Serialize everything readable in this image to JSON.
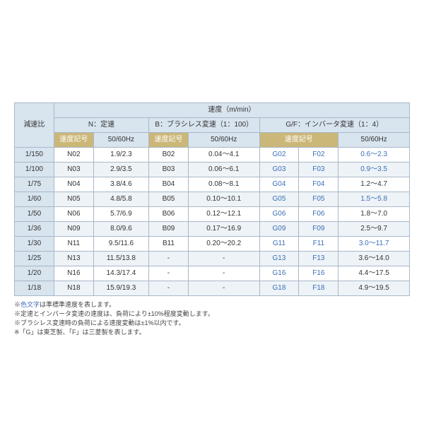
{
  "table": {
    "corner": "減速比",
    "top": "速度（m/min）",
    "groups": {
      "n": "N：定速",
      "b": "B：ブラシレス変速（1：100）",
      "gf": "G/F：インバータ変速（1：4）"
    },
    "sub": {
      "code": "速度記号",
      "hz": "50/60Hz"
    },
    "rows": [
      {
        "ratio": "1/150",
        "n_code": "N02",
        "n_hz": "1.9/2.3",
        "b_code": "B02",
        "b_hz": "0.04～4.1",
        "g": "G02",
        "f": "F02",
        "gf_hz": "0.6～2.3",
        "blue": true
      },
      {
        "ratio": "1/100",
        "n_code": "N03",
        "n_hz": "2.9/3.5",
        "b_code": "B03",
        "b_hz": "0.06～6.1",
        "g": "G03",
        "f": "F03",
        "gf_hz": "0.9～3.5",
        "blue": true
      },
      {
        "ratio": "1/75",
        "n_code": "N04",
        "n_hz": "3.8/4.6",
        "b_code": "B04",
        "b_hz": "0.08～8.1",
        "g": "G04",
        "f": "F04",
        "gf_hz": "1.2～4.7"
      },
      {
        "ratio": "1/60",
        "n_code": "N05",
        "n_hz": "4.8/5.8",
        "b_code": "B05",
        "b_hz": "0.10～10.1",
        "g": "G05",
        "f": "F05",
        "gf_hz": "1.5～5.8",
        "blue": true
      },
      {
        "ratio": "1/50",
        "n_code": "N06",
        "n_hz": "5.7/6.9",
        "b_code": "B06",
        "b_hz": "0.12～12.1",
        "g": "G06",
        "f": "F06",
        "gf_hz": "1.8～7.0"
      },
      {
        "ratio": "1/36",
        "n_code": "N09",
        "n_hz": "8.0/9.6",
        "b_code": "B09",
        "b_hz": "0.17～16.9",
        "g": "G09",
        "f": "F09",
        "gf_hz": "2.5～9.7"
      },
      {
        "ratio": "1/30",
        "n_code": "N11",
        "n_hz": "9.5/11.6",
        "b_code": "B11",
        "b_hz": "0.20～20.2",
        "g": "G11",
        "f": "F11",
        "gf_hz": "3.0～11.7",
        "blue": true
      },
      {
        "ratio": "1/25",
        "n_code": "N13",
        "n_hz": "11.5/13.8",
        "b_code": "-",
        "b_hz": "-",
        "g": "G13",
        "f": "F13",
        "gf_hz": "3.6～14.0"
      },
      {
        "ratio": "1/20",
        "n_code": "N16",
        "n_hz": "14.3/17.4",
        "b_code": "-",
        "b_hz": "-",
        "g": "G16",
        "f": "F16",
        "gf_hz": "4.4～17.5"
      },
      {
        "ratio": "1/18",
        "n_code": "N18",
        "n_hz": "15.9/19.3",
        "b_code": "-",
        "b_hz": "-",
        "g": "G18",
        "f": "F18",
        "gf_hz": "4.9～19.5"
      }
    ]
  },
  "notes": [
    {
      "pre": "※",
      "blue": "色文字",
      "post": "は準標準速度を表します。"
    },
    {
      "pre": "※定速とインバータ変速の速度は、負荷により±10%程度変動します。"
    },
    {
      "pre": "※ブラシレス変速時の負荷による速度変動は±1%以内です。"
    },
    {
      "pre": "※「G」は東芝製、「F」は三菱製を表します。"
    }
  ],
  "col_widths": [
    "50px",
    "50px",
    "70px",
    "50px",
    "90px",
    "50px",
    "50px",
    "90px"
  ]
}
